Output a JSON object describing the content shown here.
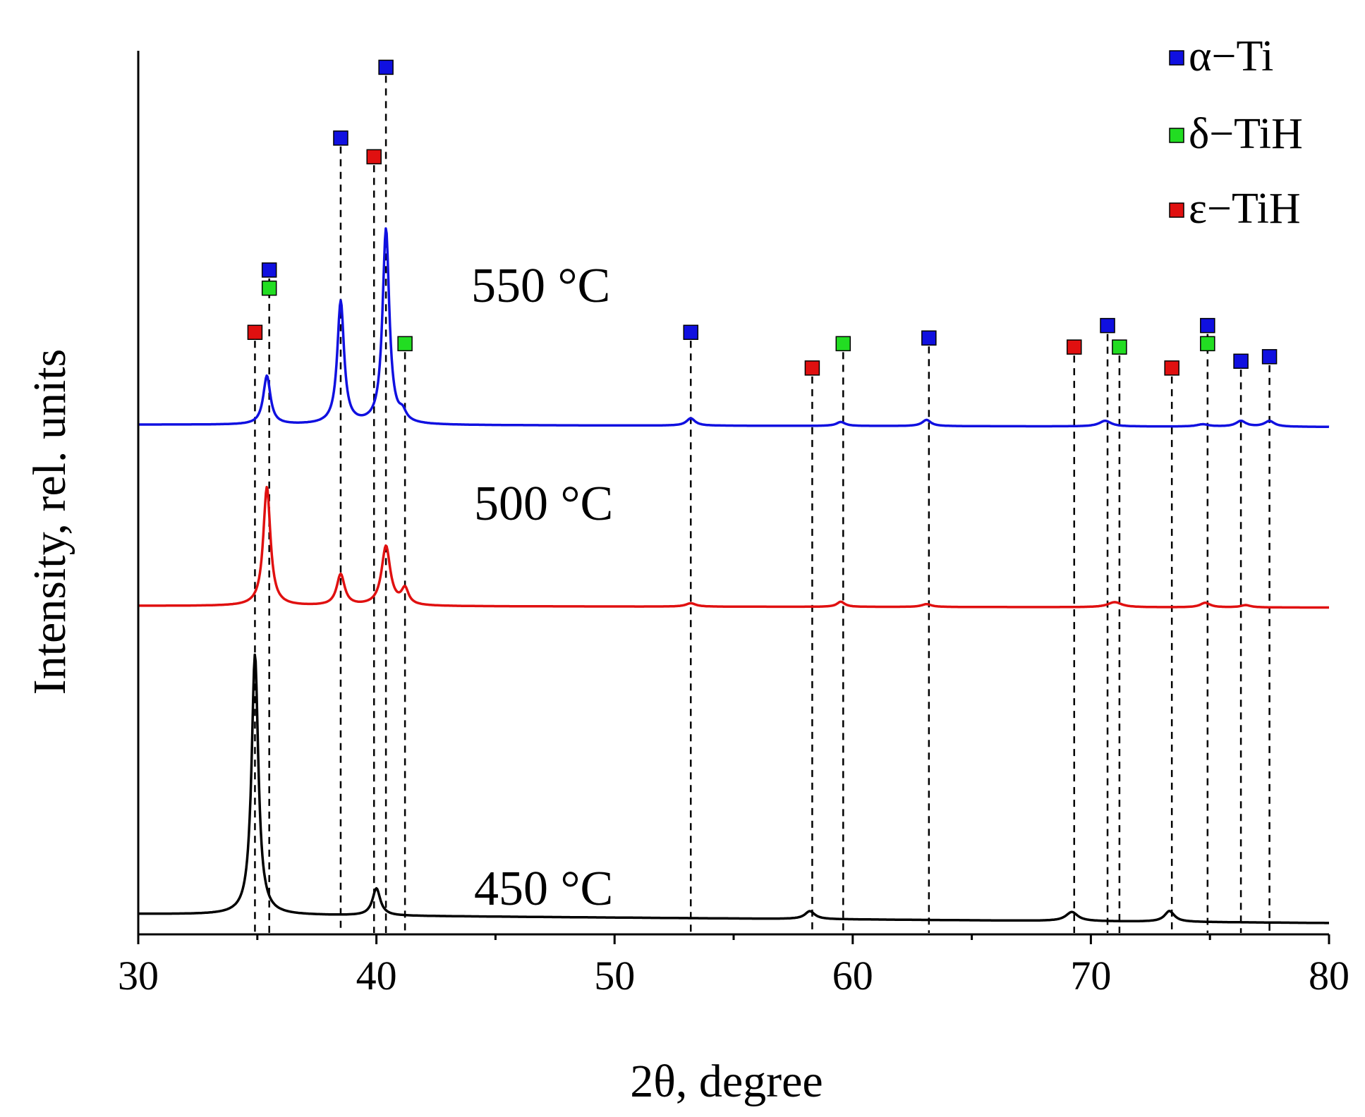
{
  "chart_data": {
    "type": "line",
    "title": "",
    "xlabel": "2θ, degree",
    "ylabel": "Intensity, rel. units",
    "xlim": [
      30,
      80
    ],
    "x_ticks": [
      30,
      40,
      50,
      60,
      70,
      80
    ],
    "x_tick_labels": [
      "30",
      "40",
      "50",
      "60",
      "70",
      "80"
    ],
    "y_ticks": [],
    "legend_position": "top-right",
    "legend": [
      {
        "symbol": "square",
        "color": "#1010e0",
        "label": "α−Ti"
      },
      {
        "symbol": "square",
        "color": "#22dd22",
        "label": "δ−TiH"
      },
      {
        "symbol": "square",
        "color": "#e01010",
        "label": "ε−TiH"
      }
    ],
    "series": [
      {
        "name": "450 °C",
        "label": "450 °C",
        "color": "#000000",
        "baseline": [
          [
            30,
            1.6
          ],
          [
            80,
            0.0
          ]
        ],
        "peaks": [
          {
            "x": 34.9,
            "height": 46.0,
            "width": 0.17
          },
          {
            "x": 40.0,
            "height": 4.8,
            "width": 0.2
          },
          {
            "x": 58.2,
            "height": 1.4,
            "width": 0.25
          },
          {
            "x": 69.2,
            "height": 1.6,
            "width": 0.3
          },
          {
            "x": 73.3,
            "height": 1.9,
            "width": 0.25
          }
        ]
      },
      {
        "name": "500 °C",
        "label": "500 °C",
        "color": "#e01010",
        "baseline": [
          [
            30,
            0.0
          ],
          [
            80,
            -0.3
          ]
        ],
        "peaks": [
          {
            "x": 35.4,
            "height": 21.0,
            "width": 0.18
          },
          {
            "x": 38.5,
            "height": 5.5,
            "width": 0.2
          },
          {
            "x": 40.4,
            "height": 10.5,
            "width": 0.22
          },
          {
            "x": 41.2,
            "height": 2.8,
            "width": 0.18
          },
          {
            "x": 53.2,
            "height": 0.6,
            "width": 0.25
          },
          {
            "x": 59.5,
            "height": 0.9,
            "width": 0.2
          },
          {
            "x": 63.1,
            "height": 0.5,
            "width": 0.25
          },
          {
            "x": 71.0,
            "height": 0.9,
            "width": 0.35
          },
          {
            "x": 74.8,
            "height": 0.8,
            "width": 0.25
          },
          {
            "x": 76.5,
            "height": 0.4,
            "width": 0.25
          }
        ]
      },
      {
        "name": "550 °C",
        "label": "550 °C",
        "color": "#1010e0",
        "baseline": [
          [
            30,
            0.0
          ],
          [
            80,
            -0.4
          ]
        ],
        "peaks": [
          {
            "x": 35.4,
            "height": 8.6,
            "width": 0.18
          },
          {
            "x": 38.5,
            "height": 21.7,
            "width": 0.17
          },
          {
            "x": 40.4,
            "height": 34.5,
            "width": 0.17
          },
          {
            "x": 41.1,
            "height": 1.5,
            "width": 0.18
          },
          {
            "x": 53.2,
            "height": 1.3,
            "width": 0.22
          },
          {
            "x": 59.5,
            "height": 0.7,
            "width": 0.22
          },
          {
            "x": 63.1,
            "height": 1.1,
            "width": 0.22
          },
          {
            "x": 70.6,
            "height": 1.0,
            "width": 0.3
          },
          {
            "x": 74.7,
            "height": 0.4,
            "width": 0.3
          },
          {
            "x": 76.3,
            "height": 1.0,
            "width": 0.25
          },
          {
            "x": 77.5,
            "height": 1.0,
            "width": 0.25
          }
        ]
      }
    ],
    "reference_lines": [
      {
        "x": 34.9,
        "phase": "ε−TiH",
        "marker_y": 104.3,
        "color": "#e01010"
      },
      {
        "x": 35.5,
        "phase": "α−Ti",
        "marker_y": 115.3,
        "color": "#1010e0"
      },
      {
        "x": 35.5,
        "phase": "δ−TiH",
        "marker_y": 112.1,
        "color": "#22dd22"
      },
      {
        "x": 38.5,
        "phase": "α−Ti",
        "marker_y": 138.6,
        "color": "#1010e0"
      },
      {
        "x": 39.9,
        "phase": "ε−TiH",
        "marker_y": 135.3,
        "color": "#e01010"
      },
      {
        "x": 40.4,
        "phase": "α−Ti",
        "marker_y": 151.1,
        "color": "#1010e0"
      },
      {
        "x": 41.2,
        "phase": "δ−TiH",
        "marker_y": 102.3,
        "color": "#22dd22"
      },
      {
        "x": 53.2,
        "phase": "α−Ti",
        "marker_y": 104.3,
        "color": "#1010e0"
      },
      {
        "x": 58.3,
        "phase": "ε−TiH",
        "marker_y": 98.0,
        "color": "#e01010"
      },
      {
        "x": 59.6,
        "phase": "δ−TiH",
        "marker_y": 102.3,
        "color": "#22dd22"
      },
      {
        "x": 63.2,
        "phase": "α−Ti",
        "marker_y": 103.3,
        "color": "#1010e0"
      },
      {
        "x": 69.3,
        "phase": "ε−TiH",
        "marker_y": 101.7,
        "color": "#e01010"
      },
      {
        "x": 70.7,
        "phase": "α−Ti",
        "marker_y": 105.5,
        "color": "#1010e0"
      },
      {
        "x": 71.2,
        "phase": "δ−TiH",
        "marker_y": 101.7,
        "color": "#22dd22"
      },
      {
        "x": 73.4,
        "phase": "ε−TiH",
        "marker_y": 98.0,
        "color": "#e01010"
      },
      {
        "x": 74.9,
        "phase": "α−Ti",
        "marker_y": 105.5,
        "color": "#1010e0"
      },
      {
        "x": 74.9,
        "phase": "δ−TiH",
        "marker_y": 102.3,
        "color": "#22dd22"
      },
      {
        "x": 76.3,
        "phase": "α−Ti",
        "marker_y": 99.2,
        "color": "#1010e0"
      },
      {
        "x": 77.5,
        "phase": "α−Ti",
        "marker_y": 100.0,
        "color": "#1010e0"
      }
    ],
    "y_offsets": {
      "450 °C": 0,
      "500 °C": 56,
      "550 °C": 88
    },
    "ylim": [
      -2,
      158
    ]
  }
}
